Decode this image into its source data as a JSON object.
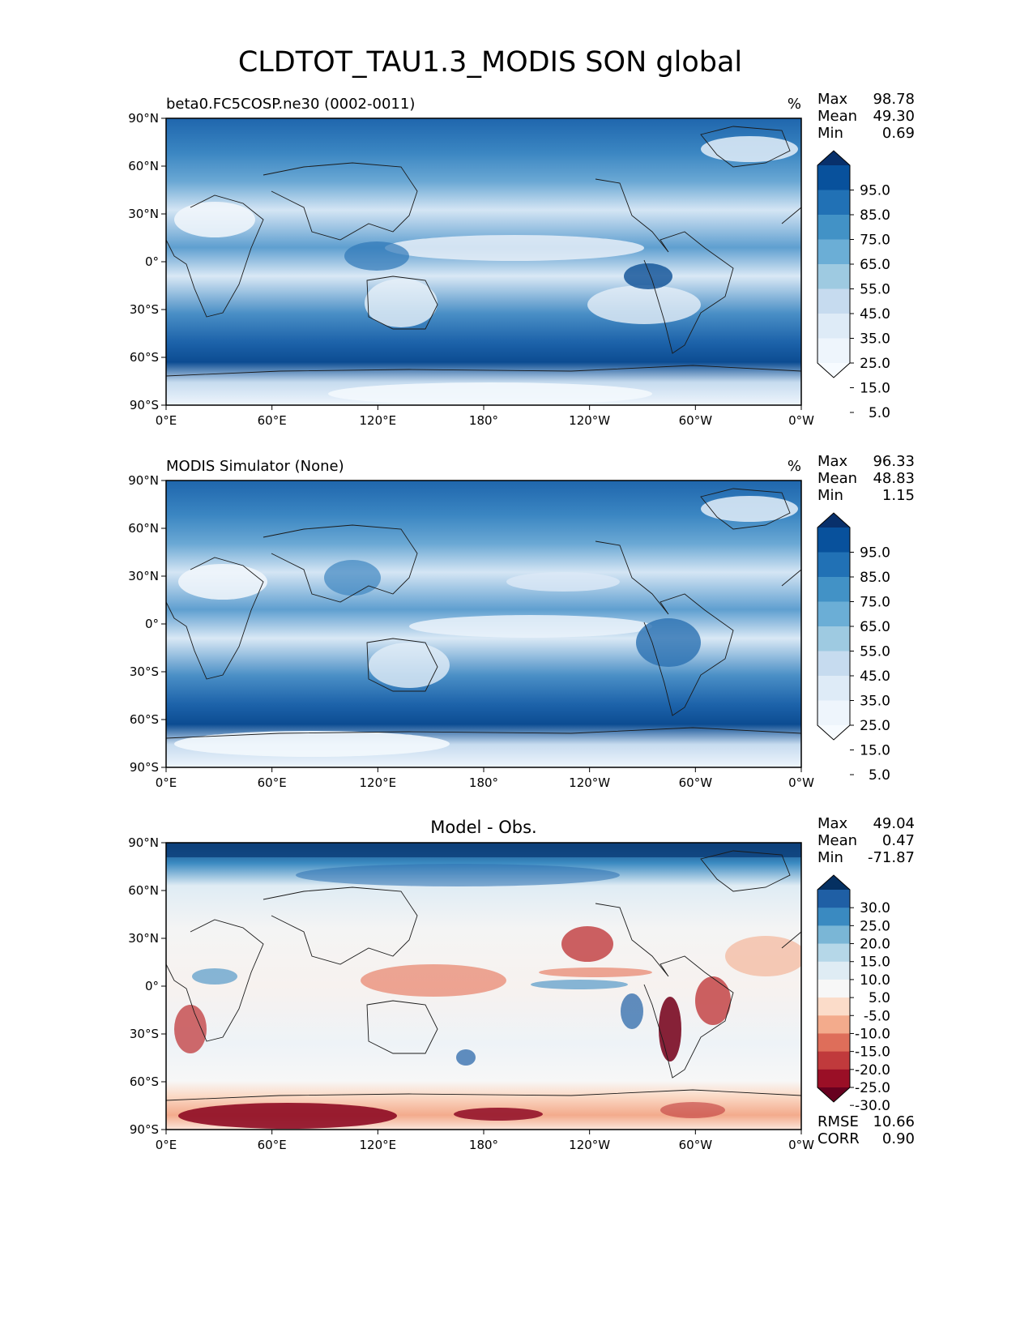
{
  "chart_data": {
    "type": "heatmap",
    "title": "CLDTOT_TAU1.3_MODIS SON global",
    "x_ticks": [
      "0°E",
      "60°E",
      "120°E",
      "180°",
      "120°W",
      "60°W",
      "0°W"
    ],
    "y_ticks": [
      "90°N",
      "60°N",
      "30°N",
      "0°",
      "30°S",
      "60°S",
      "90°S"
    ],
    "panels": [
      {
        "id": "test",
        "title_left": "beta0.FC5COSP.ne30 (0002-0011)",
        "title_center": "",
        "units": "%",
        "stats": [
          {
            "label": "Max",
            "value": "98.78"
          },
          {
            "label": "Mean",
            "value": "49.30"
          },
          {
            "label": "Min",
            "value": "0.69"
          }
        ],
        "colorbar_labels": [
          "95.0",
          "85.0",
          "75.0",
          "65.0",
          "55.0",
          "45.0",
          "35.0",
          "25.0",
          "15.0",
          "5.0"
        ],
        "colorbar_colors": [
          "#08306b",
          "#08519c",
          "#2171b5",
          "#4292c6",
          "#6baed6",
          "#9ecae1",
          "#c6dbef",
          "#deebf7",
          "#eef5fc",
          "#f7fbff"
        ],
        "extra_stats": []
      },
      {
        "id": "reference",
        "title_left": "MODIS Simulator (None)",
        "title_center": "",
        "units": "%",
        "stats": [
          {
            "label": "Max",
            "value": "96.33"
          },
          {
            "label": "Mean",
            "value": "48.83"
          },
          {
            "label": "Min",
            "value": "1.15"
          }
        ],
        "colorbar_labels": [
          "95.0",
          "85.0",
          "75.0",
          "65.0",
          "55.0",
          "45.0",
          "35.0",
          "25.0",
          "15.0",
          "5.0"
        ],
        "colorbar_colors": [
          "#08306b",
          "#08519c",
          "#2171b5",
          "#4292c6",
          "#6baed6",
          "#9ecae1",
          "#c6dbef",
          "#deebf7",
          "#eef5fc",
          "#f7fbff"
        ],
        "extra_stats": []
      },
      {
        "id": "diff",
        "title_left": "",
        "title_center": "Model - Obs.",
        "units": "",
        "stats": [
          {
            "label": "Max",
            "value": "49.04"
          },
          {
            "label": "Mean",
            "value": "0.47"
          },
          {
            "label": "Min",
            "value": "-71.87"
          }
        ],
        "colorbar_labels": [
          "30.0",
          "25.0",
          "20.0",
          "15.0",
          "10.0",
          "5.0",
          "-5.0",
          "-10.0",
          "-15.0",
          "-20.0",
          "-25.0",
          "-30.0"
        ],
        "colorbar_colors": [
          "#053061",
          "#1f5fa5",
          "#3a8ac1",
          "#7ab6d6",
          "#b5d7e8",
          "#dfecf4",
          "#f7f7f7",
          "#fbdcc9",
          "#f3ab8c",
          "#de6e5a",
          "#c03a3c",
          "#9a0f26",
          "#67001f"
        ],
        "extra_stats": [
          {
            "label": "RMSE",
            "value": "10.66"
          },
          {
            "label": "CORR",
            "value": "0.90"
          }
        ]
      }
    ]
  }
}
